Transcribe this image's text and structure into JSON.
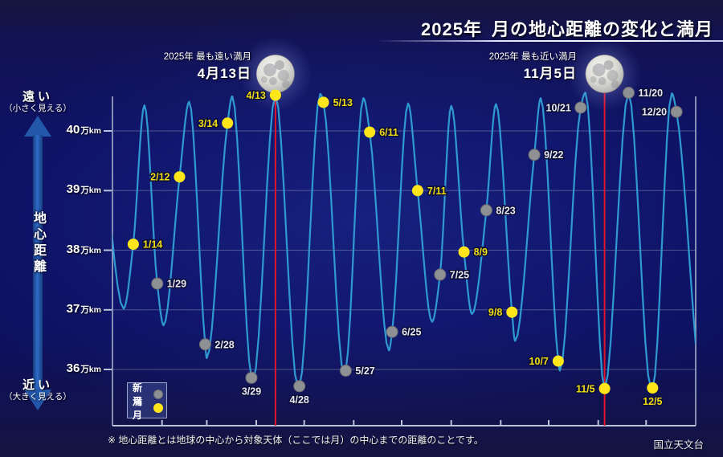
{
  "title": {
    "year": "2025年",
    "main": "月の地心距離の変化と満月"
  },
  "y_axis": {
    "axis_title": "地心距離",
    "unit_suffix": "万km",
    "tick_numbers": [
      "40",
      "39",
      "38",
      "37",
      "36"
    ],
    "top_label": {
      "main": "遠い",
      "sub": "（小さく見える）"
    },
    "bottom_label": {
      "main": "近い",
      "sub": "（大きく見える）"
    }
  },
  "legend": {
    "new_moon": "新月",
    "full_moon": "満月"
  },
  "annotations": {
    "farthest": {
      "line1": "2025年 最も遠い満月",
      "line2": "4月13日",
      "day": 103
    },
    "closest": {
      "line1": "2025年 最も近い満月",
      "line2": "11月5日",
      "day": 309
    }
  },
  "footnote": "※ 地心距離とは地球の中心から対象天体（ここでは月）の中心までの距離のことです。",
  "credit": "国立天文台",
  "colors": {
    "curve": "#2f9ad2",
    "gridline": "#8a94b8",
    "axis": "#b9c3da",
    "full_moon": "#ffe61a",
    "full_moon_label": "#f2dc14",
    "new_moon": "#8f9093",
    "new_moon_label": "#e8e8ee",
    "highlight_line": "#e0142a"
  },
  "chart_data": {
    "type": "line",
    "title": "2025年 月の地心距離の変化と満月",
    "x_unit": "day_of_year_2025",
    "y_unit": "km",
    "ylim_km": [
      352000,
      410000
    ],
    "y_ticks_km": [
      400000,
      390000,
      380000,
      370000,
      360000
    ],
    "y_tick_labels": [
      "40万km",
      "39万km",
      "38万km",
      "37万km",
      "36万km"
    ],
    "x_month_tick_days": [
      32,
      60,
      91,
      121,
      152,
      182,
      213,
      244,
      274,
      305,
      335
    ],
    "grid": "horizontal-only",
    "curve_extrema": [
      {
        "day": -7,
        "km": 404500,
        "kind": "apogee-boundary"
      },
      {
        "day": 8,
        "km": 370200,
        "kind": "perigee"
      },
      {
        "day": 21,
        "km": 404300,
        "kind": "apogee"
      },
      {
        "day": 33,
        "km": 367400,
        "kind": "perigee"
      },
      {
        "day": 49,
        "km": 404900,
        "kind": "apogee"
      },
      {
        "day": 60,
        "km": 361900,
        "kind": "perigee"
      },
      {
        "day": 76,
        "km": 405800,
        "kind": "apogee"
      },
      {
        "day": 89,
        "km": 358100,
        "kind": "perigee"
      },
      {
        "day": 103,
        "km": 406000,
        "kind": "apogee"
      },
      {
        "day": 117,
        "km": 357100,
        "kind": "perigee"
      },
      {
        "day": 131,
        "km": 406200,
        "kind": "apogee"
      },
      {
        "day": 146,
        "km": 359000,
        "kind": "perigee"
      },
      {
        "day": 158,
        "km": 405500,
        "kind": "apogee"
      },
      {
        "day": 174,
        "km": 363200,
        "kind": "perigee"
      },
      {
        "day": 186,
        "km": 404600,
        "kind": "apogee"
      },
      {
        "day": 201,
        "km": 368000,
        "kind": "perigee"
      },
      {
        "day": 213,
        "km": 404200,
        "kind": "apogee"
      },
      {
        "day": 226,
        "km": 369300,
        "kind": "perigee"
      },
      {
        "day": 241,
        "km": 404500,
        "kind": "apogee"
      },
      {
        "day": 253,
        "km": 364800,
        "kind": "perigee"
      },
      {
        "day": 269,
        "km": 405500,
        "kind": "apogee"
      },
      {
        "day": 281,
        "km": 359800,
        "kind": "perigee"
      },
      {
        "day": 297,
        "km": 406400,
        "kind": "apogee"
      },
      {
        "day": 309,
        "km": 356800,
        "kind": "perigee"
      },
      {
        "day": 324,
        "km": 406400,
        "kind": "apogee"
      },
      {
        "day": 338,
        "km": 356900,
        "kind": "perigee"
      },
      {
        "day": 351,
        "km": 406300,
        "kind": "apogee"
      },
      {
        "day": 366,
        "km": 364300,
        "kind": "perigee-boundary"
      }
    ],
    "full_moons": [
      {
        "date": "1/14",
        "day": 14,
        "km": 381000,
        "label_side": "right"
      },
      {
        "date": "2/12",
        "day": 43,
        "km": 392300,
        "label_side": "left"
      },
      {
        "date": "3/14",
        "day": 73,
        "km": 401300,
        "label_side": "left"
      },
      {
        "date": "4/13",
        "day": 103,
        "km": 406000,
        "label_side": "left"
      },
      {
        "date": "5/13",
        "day": 133,
        "km": 404800,
        "label_side": "right"
      },
      {
        "date": "6/11",
        "day": 162,
        "km": 399800,
        "label_side": "right"
      },
      {
        "date": "7/11",
        "day": 192,
        "km": 390000,
        "label_side": "right"
      },
      {
        "date": "8/9",
        "day": 221,
        "km": 379700,
        "label_side": "right"
      },
      {
        "date": "9/8",
        "day": 251,
        "km": 369600,
        "label_side": "left"
      },
      {
        "date": "10/7",
        "day": 280,
        "km": 361400,
        "label_side": "left"
      },
      {
        "date": "11/5",
        "day": 309,
        "km": 356800,
        "label_side": "left"
      },
      {
        "date": "12/5",
        "day": 339,
        "km": 356900,
        "label_side": "below"
      }
    ],
    "new_moons": [
      {
        "date": "1/29",
        "day": 29,
        "km": 374400,
        "label_side": "right"
      },
      {
        "date": "2/28",
        "day": 59,
        "km": 364200,
        "label_side": "right"
      },
      {
        "date": "3/29",
        "day": 88,
        "km": 358600,
        "label_side": "below"
      },
      {
        "date": "4/28",
        "day": 118,
        "km": 357200,
        "label_side": "below"
      },
      {
        "date": "5/27",
        "day": 147,
        "km": 359800,
        "label_side": "right"
      },
      {
        "date": "6/25",
        "day": 176,
        "km": 366300,
        "label_side": "right"
      },
      {
        "date": "7/25",
        "day": 206,
        "km": 375900,
        "label_side": "right"
      },
      {
        "date": "8/23",
        "day": 235,
        "km": 386700,
        "label_side": "right"
      },
      {
        "date": "9/22",
        "day": 265,
        "km": 396000,
        "label_side": "right"
      },
      {
        "date": "10/21",
        "day": 294,
        "km": 403900,
        "label_side": "left"
      },
      {
        "date": "11/20",
        "day": 324,
        "km": 406400,
        "label_side": "right"
      },
      {
        "date": "12/20",
        "day": 354,
        "km": 403200,
        "label_side": "left"
      }
    ]
  }
}
